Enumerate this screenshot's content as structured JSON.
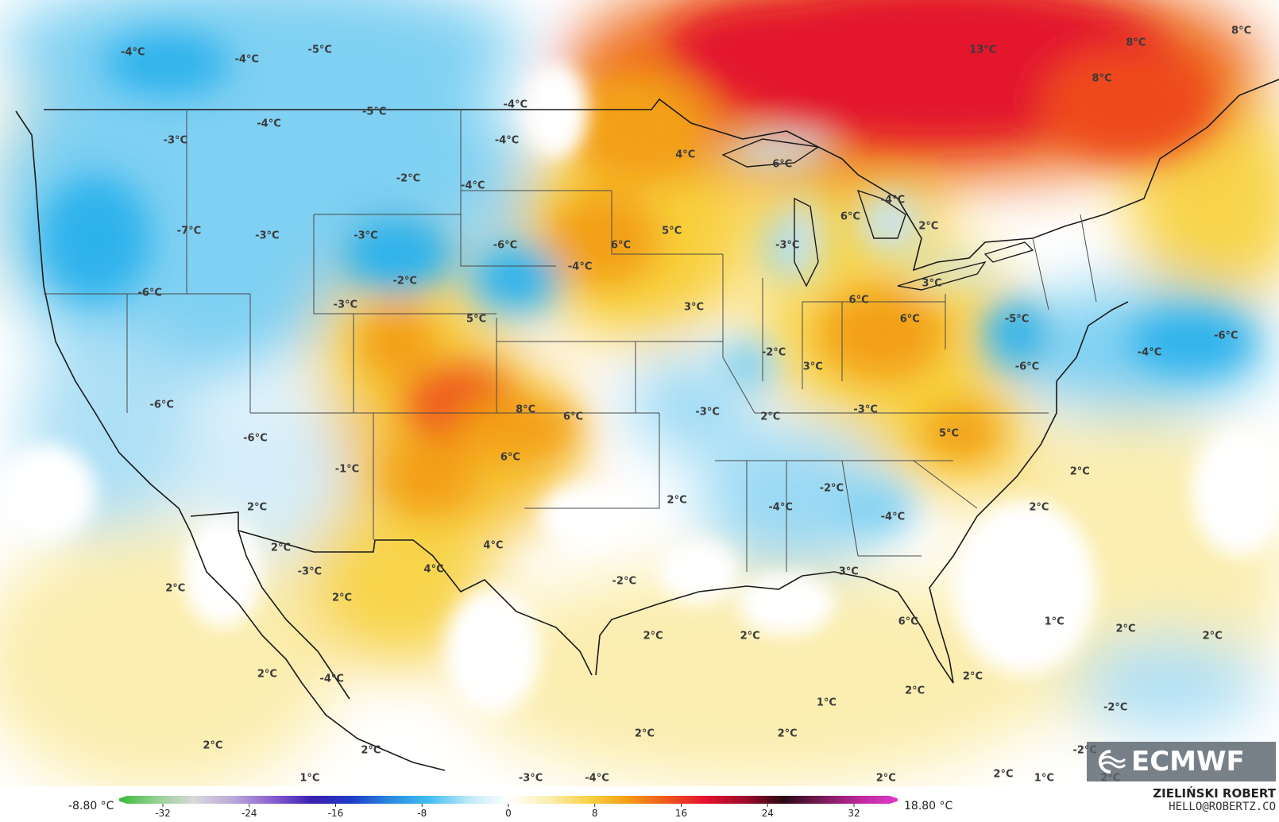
{
  "map": {
    "colors": {
      "ocean_neutral": "#ffffff",
      "light_blue": "#d6eefa",
      "blue": "#7fd0f2",
      "deep_blue": "#2fb2ec",
      "pale_yellow": "#fbeeb0",
      "yellow": "#f8d44a",
      "orange": "#f3a015",
      "red_orange": "#ee5a1c",
      "red": "#e3132e",
      "border": "#1a1a1a"
    },
    "labels": [
      {
        "text": "-4°C",
        "lon": -125.5,
        "lat": 50.4
      },
      {
        "text": "-4°C",
        "lon": -118.8,
        "lat": 50.1
      },
      {
        "text": "-5°C",
        "lon": -114.5,
        "lat": 50.5
      },
      {
        "text": "-4°C",
        "lon": -103.0,
        "lat": 48.2
      },
      {
        "text": "13°C",
        "lon": -75.5,
        "lat": 50.5
      },
      {
        "text": "8°C",
        "lon": -66.5,
        "lat": 50.8
      },
      {
        "text": "8°C",
        "lon": -68.5,
        "lat": 49.3
      },
      {
        "text": "8°C",
        "lon": -60.3,
        "lat": 51.3
      },
      {
        "text": "-3°C",
        "lon": -123.0,
        "lat": 46.7
      },
      {
        "text": "-4°C",
        "lon": -117.5,
        "lat": 47.4
      },
      {
        "text": "-5°C",
        "lon": -111.3,
        "lat": 47.9
      },
      {
        "text": "-4°C",
        "lon": -103.5,
        "lat": 46.7
      },
      {
        "text": "-2°C",
        "lon": -109.3,
        "lat": 45.1
      },
      {
        "text": "-4°C",
        "lon": -105.5,
        "lat": 44.8
      },
      {
        "text": "4°C",
        "lon": -93.0,
        "lat": 46.1
      },
      {
        "text": "6°C",
        "lon": -87.3,
        "lat": 45.7
      },
      {
        "text": "-4°C",
        "lon": -80.8,
        "lat": 44.2
      },
      {
        "text": "6°C",
        "lon": -83.3,
        "lat": 43.5
      },
      {
        "text": "2°C",
        "lon": -78.7,
        "lat": 43.1
      },
      {
        "text": "-7°C",
        "lon": -122.2,
        "lat": 42.9
      },
      {
        "text": "-3°C",
        "lon": -117.6,
        "lat": 42.7
      },
      {
        "text": "-3°C",
        "lon": -111.8,
        "lat": 42.7
      },
      {
        "text": "-6°C",
        "lon": -103.6,
        "lat": 42.3
      },
      {
        "text": "6°C",
        "lon": -96.8,
        "lat": 42.3
      },
      {
        "text": "5°C",
        "lon": -93.8,
        "lat": 42.9
      },
      {
        "text": "-3°C",
        "lon": -87.0,
        "lat": 42.3
      },
      {
        "text": "-4°C",
        "lon": -99.2,
        "lat": 41.4
      },
      {
        "text": "-2°C",
        "lon": -109.5,
        "lat": 40.8
      },
      {
        "text": "3°C",
        "lon": -78.5,
        "lat": 40.7
      },
      {
        "text": "-6°C",
        "lon": -124.5,
        "lat": 40.3
      },
      {
        "text": "-3°C",
        "lon": -113.0,
        "lat": 39.8
      },
      {
        "text": "5°C",
        "lon": -105.3,
        "lat": 39.2
      },
      {
        "text": "3°C",
        "lon": -92.5,
        "lat": 39.7
      },
      {
        "text": "6°C",
        "lon": -82.8,
        "lat": 40.0
      },
      {
        "text": "6°C",
        "lon": -79.8,
        "lat": 39.2
      },
      {
        "text": "-5°C",
        "lon": -73.5,
        "lat": 39.2
      },
      {
        "text": "-6°C",
        "lon": -61.2,
        "lat": 38.5
      },
      {
        "text": "-4°C",
        "lon": -65.7,
        "lat": 37.8
      },
      {
        "text": "-2°C",
        "lon": -87.8,
        "lat": 37.8
      },
      {
        "text": "3°C",
        "lon": -85.5,
        "lat": 37.2
      },
      {
        "text": "-6°C",
        "lon": -72.9,
        "lat": 37.2
      },
      {
        "text": "-6°C",
        "lon": -123.8,
        "lat": 35.6
      },
      {
        "text": "8°C",
        "lon": -102.4,
        "lat": 35.4
      },
      {
        "text": "6°C",
        "lon": -99.6,
        "lat": 35.1
      },
      {
        "text": "-3°C",
        "lon": -91.7,
        "lat": 35.3
      },
      {
        "text": "2°C",
        "lon": -88.0,
        "lat": 35.1
      },
      {
        "text": "-3°C",
        "lon": -82.4,
        "lat": 35.4
      },
      {
        "text": "5°C",
        "lon": -77.5,
        "lat": 34.4
      },
      {
        "text": "-6°C",
        "lon": -118.3,
        "lat": 34.2
      },
      {
        "text": "6°C",
        "lon": -103.3,
        "lat": 33.4
      },
      {
        "text": "-1°C",
        "lon": -112.9,
        "lat": 32.9
      },
      {
        "text": "2°C",
        "lon": -69.8,
        "lat": 32.8
      },
      {
        "text": "-2°C",
        "lon": -84.4,
        "lat": 32.1
      },
      {
        "text": "2°C",
        "lon": -93.5,
        "lat": 31.6
      },
      {
        "text": "2°C",
        "lon": -118.2,
        "lat": 31.3
      },
      {
        "text": "2°C",
        "lon": -72.2,
        "lat": 31.3
      },
      {
        "text": "-4°C",
        "lon": -87.4,
        "lat": 31.3
      },
      {
        "text": "-4°C",
        "lon": -80.8,
        "lat": 30.9
      },
      {
        "text": "4°C",
        "lon": -104.3,
        "lat": 29.7
      },
      {
        "text": "2°C",
        "lon": -116.8,
        "lat": 29.6
      },
      {
        "text": "4°C",
        "lon": -107.8,
        "lat": 28.7
      },
      {
        "text": "-3°C",
        "lon": -115.1,
        "lat": 28.6
      },
      {
        "text": "-2°C",
        "lon": -96.6,
        "lat": 28.2
      },
      {
        "text": "3°C",
        "lon": -83.4,
        "lat": 28.6
      },
      {
        "text": "2°C",
        "lon": -123.0,
        "lat": 27.9
      },
      {
        "text": "2°C",
        "lon": -113.2,
        "lat": 27.5
      },
      {
        "text": "6°C",
        "lon": -79.9,
        "lat": 26.5
      },
      {
        "text": "1°C",
        "lon": -71.3,
        "lat": 26.5
      },
      {
        "text": "2°C",
        "lon": -67.1,
        "lat": 26.2
      },
      {
        "text": "2°C",
        "lon": -62.0,
        "lat": 25.9
      },
      {
        "text": "2°C",
        "lon": -94.9,
        "lat": 25.9
      },
      {
        "text": "2°C",
        "lon": -89.2,
        "lat": 25.9
      },
      {
        "text": "2°C",
        "lon": -117.6,
        "lat": 24.3
      },
      {
        "text": "-4°C",
        "lon": -113.8,
        "lat": 24.1
      },
      {
        "text": "2°C",
        "lon": -76.1,
        "lat": 24.2
      },
      {
        "text": "2°C",
        "lon": -79.5,
        "lat": 23.6
      },
      {
        "text": "1°C",
        "lon": -84.7,
        "lat": 23.1
      },
      {
        "text": "-2°C",
        "lon": -67.7,
        "lat": 22.9
      },
      {
        "text": "2°C",
        "lon": -95.4,
        "lat": 21.8
      },
      {
        "text": "2°C",
        "lon": -87.0,
        "lat": 21.8
      },
      {
        "text": "2°C",
        "lon": -120.8,
        "lat": 21.3
      },
      {
        "text": "2°C",
        "lon": -111.5,
        "lat": 21.1
      },
      {
        "text": "-2°C",
        "lon": -69.5,
        "lat": 21.1
      },
      {
        "text": "2°C",
        "lon": -74.3,
        "lat": 20.1
      },
      {
        "text": "1°C",
        "lon": -115.1,
        "lat": 18.6
      },
      {
        "text": "-3°C",
        "lon": -102.1,
        "lat": 18.9
      },
      {
        "text": "-4°C",
        "lon": -98.2,
        "lat": 18.1
      },
      {
        "text": "1°C",
        "lon": -71.9,
        "lat": 19.1
      },
      {
        "text": "2°C",
        "lon": -81.2,
        "lat": 18.3
      },
      {
        "text": "2°C",
        "lon": -68.0,
        "lat": 19.1
      }
    ]
  },
  "legend": {
    "min_label": "-8.80 °C",
    "max_label": "18.80 °C",
    "ticks": [
      "-32",
      "-24",
      "-16",
      "-8",
      "0",
      "8",
      "16",
      "24",
      "32"
    ],
    "gradient_colors": [
      "#2eb82e",
      "#8fd18f",
      "#d9d9d9",
      "#b9a9d9",
      "#8a5fd0",
      "#3a1fb0",
      "#1e3cc8",
      "#2a8ae0",
      "#42bff0",
      "#bfe9f9",
      "#ffffff",
      "#fbeeb0",
      "#f8d44a",
      "#f3a015",
      "#ee5a1c",
      "#e3132e",
      "#a00b2a",
      "#2a0a14",
      "#7a1a5a",
      "#c02aa0",
      "#e33ad0"
    ]
  },
  "logo": {
    "text": "ECMWF"
  },
  "credit": {
    "name": "ZIELIŃSKI ROBERT",
    "email": "HELLO@ROBERTZ.CO"
  }
}
